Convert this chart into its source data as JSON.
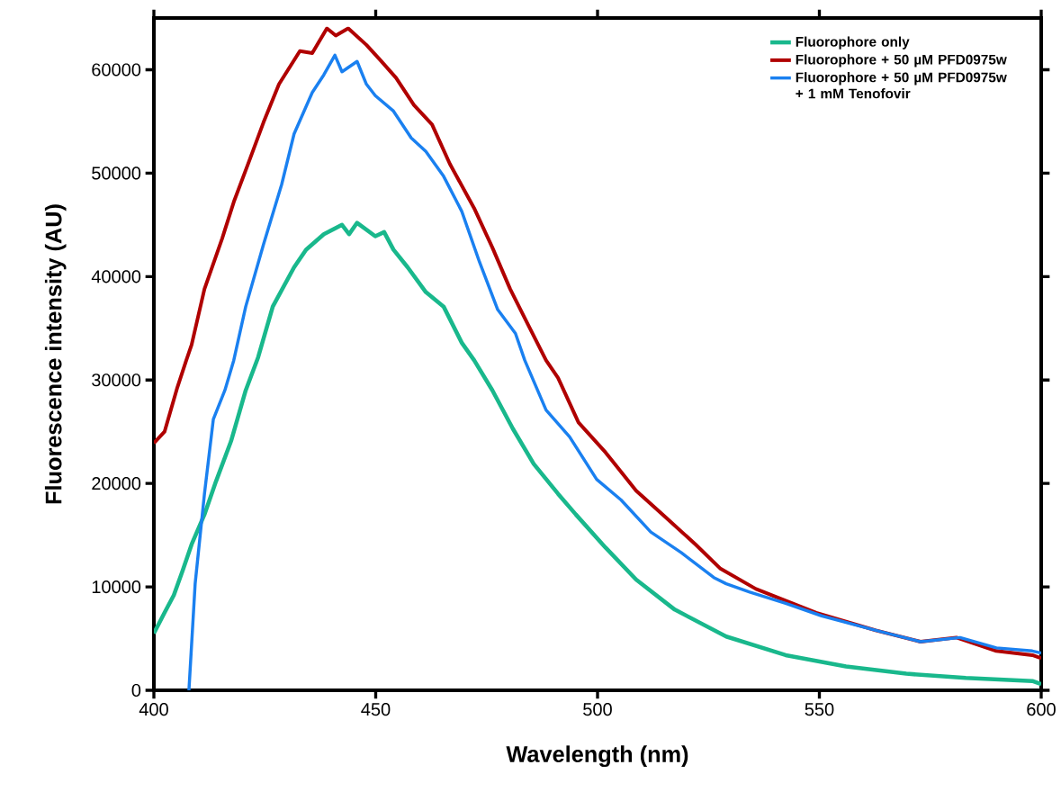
{
  "chart_data": {
    "type": "line",
    "xlabel": "Wavelength (nm)",
    "ylabel": "Fluorescence intensity (AU)",
    "xlim": [
      400,
      600
    ],
    "xticks": [
      400,
      450,
      500,
      550,
      600
    ],
    "ylim": [
      0,
      65000
    ],
    "yticks": [
      0,
      10000,
      20000,
      30000,
      40000,
      50000,
      60000
    ],
    "grid": false,
    "legend": "top right",
    "line_style": "solid",
    "series": [
      {
        "name": "Fluorophore only",
        "color": "#19b88c",
        "x": [
          400,
          402.4,
          404.5,
          406.5,
          408.5,
          411.4,
          414,
          417.4,
          420.7,
          423.5,
          426.8,
          431.6,
          434.3,
          438.3,
          442.4,
          444,
          445.8,
          449.9,
          451.9,
          454,
          457.2,
          461.3,
          465.3,
          469.4,
          472.2,
          476.3,
          480.9,
          485.6,
          491.1,
          495.1,
          501.8,
          508.7,
          517.4,
          529,
          542.4,
          556,
          569.6,
          583,
          598,
          600
        ],
        "values": [
          5500,
          7500,
          9200,
          11600,
          14100,
          17000,
          20200,
          24100,
          29000,
          32200,
          37100,
          40900,
          42600,
          44100,
          45000,
          44100,
          45200,
          43900,
          44300,
          42600,
          40900,
          38500,
          37100,
          33600,
          31900,
          29000,
          25300,
          21900,
          19000,
          17000,
          13800,
          10700,
          7800,
          5200,
          3400,
          2300,
          1600,
          1200,
          900,
          600
        ]
      },
      {
        "name": "Fluorophore + 50 µM PFD0975w",
        "color": "#b00000",
        "x": [
          400,
          402.4,
          405.3,
          407.3,
          408.5,
          411.4,
          415.4,
          418,
          421.5,
          424.7,
          428.2,
          432.9,
          435.7,
          439,
          441,
          443.8,
          447.9,
          451.1,
          454.6,
          458.6,
          462.7,
          466.7,
          472.2,
          476.3,
          480.3,
          484.4,
          488.4,
          491.1,
          495.7,
          501.8,
          508.7,
          515.4,
          522.1,
          527.6,
          535.7,
          549.3,
          562.7,
          572.8,
          580.9,
          589.9,
          598,
          600
        ],
        "values": [
          23900,
          25000,
          29300,
          31900,
          33400,
          38800,
          43700,
          47200,
          51200,
          54900,
          58600,
          61800,
          61600,
          64000,
          63300,
          64000,
          62400,
          60900,
          59200,
          56600,
          54700,
          50900,
          46600,
          42800,
          38800,
          35300,
          31900,
          30200,
          25900,
          23000,
          19300,
          16700,
          14100,
          11800,
          9800,
          7500,
          5800,
          4700,
          5100,
          3800,
          3400,
          3100
        ]
      },
      {
        "name": "Fluorophore + 50 µM PFD0975w + 1 mM Tenofovir",
        "color": "#1a80f0",
        "x": [
          407.9,
          409.3,
          411.4,
          413.4,
          416,
          418,
          420.7,
          424.7,
          428.8,
          431.6,
          435.7,
          438.3,
          440.8,
          442.4,
          445.8,
          447.9,
          449.9,
          454,
          458,
          461.3,
          465.3,
          469.4,
          473.4,
          477.5,
          481.5,
          483.6,
          488.4,
          493.7,
          499.8,
          505.3,
          512,
          518.9,
          526.2,
          529,
          534.3,
          542.4,
          550.5,
          562.7,
          572.8,
          581.7,
          589.9,
          598,
          600
        ],
        "values": [
          0,
          10300,
          19000,
          26200,
          29000,
          31900,
          37100,
          43100,
          48900,
          53800,
          57800,
          59500,
          61400,
          59800,
          60800,
          58600,
          57500,
          56000,
          53400,
          52100,
          49700,
          46300,
          41400,
          36800,
          34500,
          31900,
          27100,
          24500,
          20400,
          18400,
          15300,
          13300,
          10900,
          10300,
          9500,
          8400,
          7200,
          5800,
          4700,
          5100,
          4100,
          3800,
          3600
        ]
      }
    ]
  }
}
